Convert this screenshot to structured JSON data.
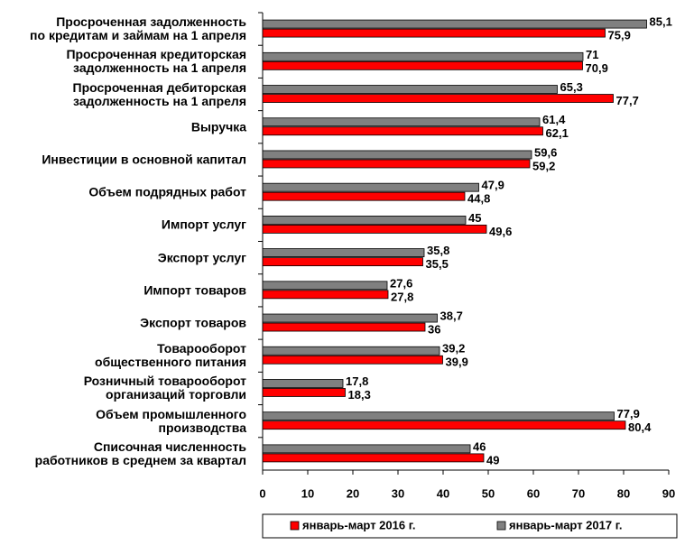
{
  "chart_data": {
    "type": "barh",
    "categories": [
      "Просроченная задолженность\nпо кредитам и займам на 1 апреля",
      "Просроченная кредиторская\nзадолженность на 1 апреля",
      "Просроченная дебиторская\nзадолженность на 1 апреля",
      "Выручка",
      "Инвестиции в основной капитал",
      "Объем подрядных работ",
      "Импорт услуг",
      "Экспорт услуг",
      "Импорт товаров",
      "Экспорт товаров",
      "Товарооборот\nобщественного питания",
      "Розничный товарооборот\nорганизаций торговли",
      "Объем промышленного\nпроизводства",
      "Списочная численность\nработников в среднем за квартал"
    ],
    "series": [
      {
        "name": "январь-март 2016 г.",
        "color": "#ff0000",
        "values": [
          75.9,
          70.9,
          77.7,
          62.1,
          59.2,
          44.8,
          49.6,
          35.5,
          27.8,
          36,
          39.9,
          18.3,
          80.4,
          49
        ],
        "value_labels": [
          "75,9",
          "70,9",
          "77,7",
          "62,1",
          "59,2",
          "44,8",
          "49,6",
          "35,5",
          "27,8",
          "36",
          "39,9",
          "18,3",
          "80,4",
          "49"
        ]
      },
      {
        "name": "январь-март 2017 г.",
        "color": "#808080",
        "values": [
          85.1,
          71,
          65.3,
          61.4,
          59.6,
          47.9,
          45,
          35.8,
          27.6,
          38.7,
          39.2,
          17.8,
          77.9,
          46
        ],
        "value_labels": [
          "85,1",
          "71",
          "65,3",
          "61,4",
          "59,6",
          "47,9",
          "45",
          "35,8",
          "27,6",
          "38,7",
          "39,2",
          "17,8",
          "77,9",
          "46"
        ]
      }
    ],
    "xlim": [
      0,
      90
    ],
    "xticks": [
      0,
      10,
      20,
      30,
      40,
      50,
      60,
      70,
      80,
      90
    ],
    "legend": "bottom"
  }
}
